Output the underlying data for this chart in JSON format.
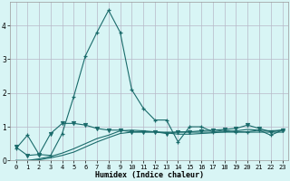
{
  "xlabel": "Humidex (Indice chaleur)",
  "bg_color": "#d8f5f5",
  "grid_color": "#b8b8c8",
  "line_color": "#1a6b6b",
  "xlim": [
    -0.5,
    23.5
  ],
  "ylim": [
    0,
    4.7
  ],
  "yticks": [
    0,
    1,
    2,
    3,
    4
  ],
  "xticks": [
    0,
    1,
    2,
    3,
    4,
    5,
    6,
    7,
    8,
    9,
    10,
    11,
    12,
    13,
    14,
    15,
    16,
    17,
    18,
    19,
    20,
    21,
    22,
    23
  ],
  "series1_x": [
    0,
    1,
    2,
    3,
    4,
    5,
    6,
    7,
    8,
    9,
    10,
    11,
    12,
    13,
    14,
    15,
    16,
    17,
    18,
    19,
    20,
    21,
    22,
    23
  ],
  "series1_y": [
    0.35,
    0.75,
    0.18,
    0.15,
    0.8,
    1.9,
    3.1,
    3.8,
    4.45,
    3.8,
    2.1,
    1.55,
    1.2,
    1.2,
    0.55,
    1.0,
    1.0,
    0.85,
    0.9,
    0.85,
    0.85,
    0.9,
    0.75,
    0.9
  ],
  "series2_x": [
    0,
    1,
    2,
    3,
    4,
    5,
    6,
    7,
    8,
    9,
    10,
    11,
    12,
    13,
    14,
    15,
    16,
    17,
    18,
    19,
    20,
    21,
    22,
    23
  ],
  "series2_y": [
    0.4,
    0.15,
    0.18,
    0.8,
    1.1,
    1.1,
    1.05,
    0.95,
    0.9,
    0.9,
    0.85,
    0.85,
    0.85,
    0.8,
    0.85,
    0.85,
    0.88,
    0.9,
    0.92,
    0.95,
    1.05,
    0.95,
    0.85,
    0.9
  ],
  "series3_x": [
    0,
    1,
    2,
    3,
    4,
    5,
    6,
    7,
    8,
    9,
    10,
    11,
    12,
    13,
    14,
    15,
    16,
    17,
    18,
    19,
    20,
    21,
    22,
    23
  ],
  "series3_y": [
    0.0,
    0.0,
    0.05,
    0.12,
    0.22,
    0.35,
    0.5,
    0.65,
    0.75,
    0.88,
    0.9,
    0.88,
    0.85,
    0.82,
    0.78,
    0.78,
    0.8,
    0.82,
    0.85,
    0.88,
    0.92,
    0.9,
    0.88,
    0.9
  ],
  "series4_x": [
    0,
    1,
    2,
    3,
    4,
    5,
    6,
    7,
    8,
    9,
    10,
    11,
    12,
    13,
    14,
    15,
    16,
    17,
    18,
    19,
    20,
    21,
    22,
    23
  ],
  "series4_y": [
    0.0,
    0.0,
    0.02,
    0.08,
    0.15,
    0.25,
    0.4,
    0.55,
    0.68,
    0.8,
    0.84,
    0.84,
    0.84,
    0.84,
    0.84,
    0.84,
    0.84,
    0.84,
    0.84,
    0.84,
    0.84,
    0.84,
    0.84,
    0.84
  ]
}
